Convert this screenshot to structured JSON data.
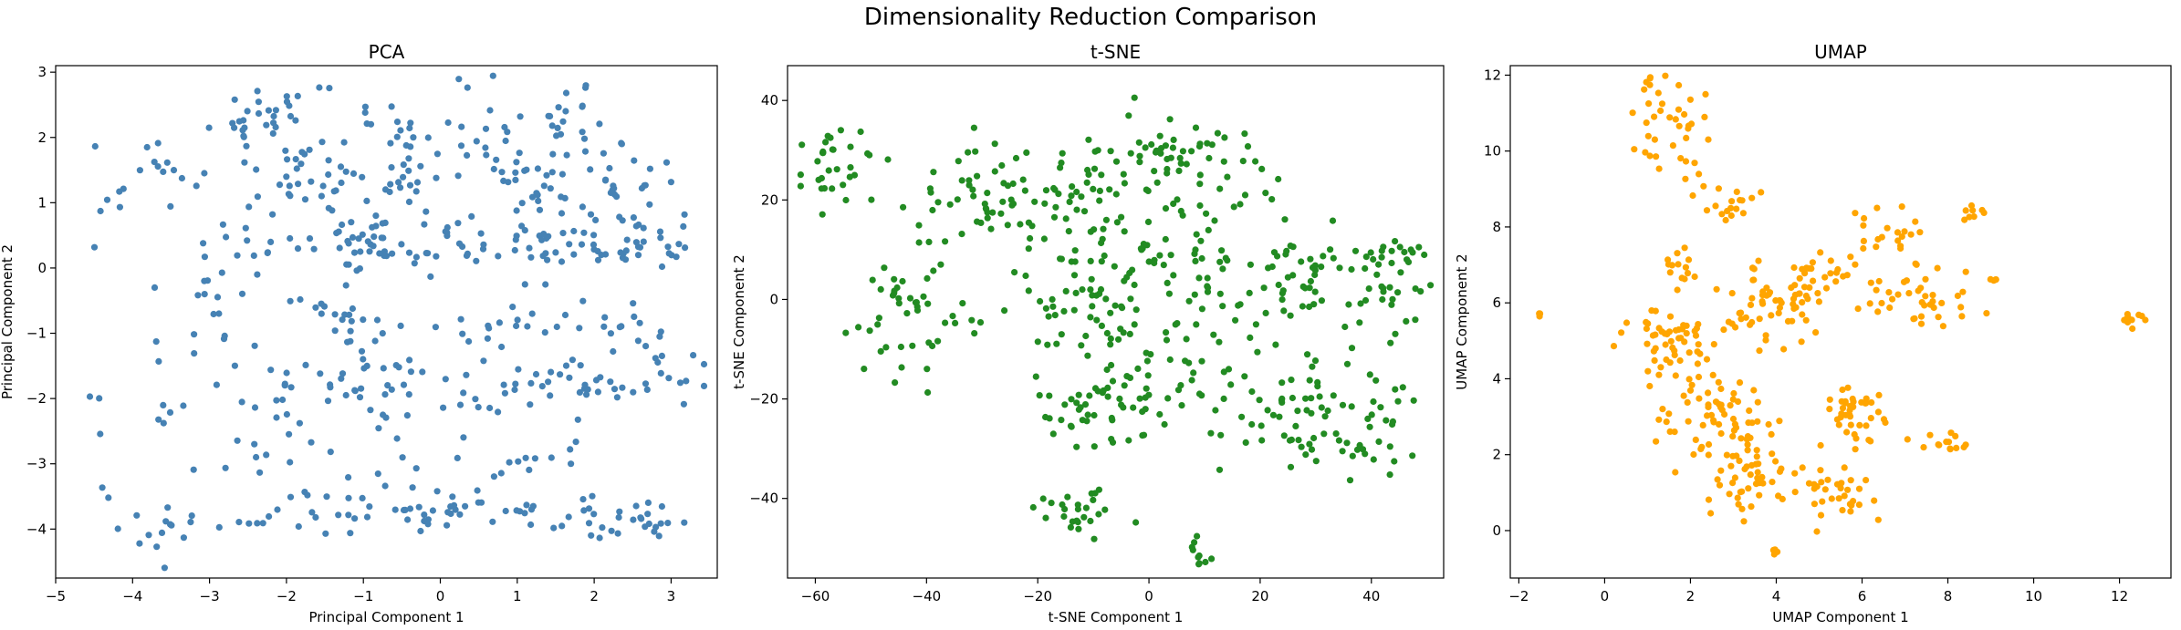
{
  "figure": {
    "title": "Dimensionality Reduction Comparison"
  },
  "chart_data": [
    {
      "type": "scatter",
      "title": "PCA",
      "xlabel": "Principal Component 1",
      "ylabel": "Principal Component 2",
      "xlim": [
        -5.0,
        3.6
      ],
      "ylim": [
        -4.75,
        3.1
      ],
      "xticks": [
        "−5",
        "−4",
        "−3",
        "−2",
        "−1",
        "0",
        "1",
        "2",
        "3"
      ],
      "yticks": [
        "−4",
        "−3",
        "−2",
        "−1",
        "0",
        "1",
        "2",
        "3"
      ],
      "grid": false,
      "color": "#4682b4",
      "points_seed": 11,
      "clusters": [
        {
          "cx": -2.3,
          "cy": 2.35,
          "sx": 0.28,
          "sy": 0.28,
          "n": 28
        },
        {
          "cx": -0.8,
          "cy": 2.2,
          "sx": 0.45,
          "sy": 0.35,
          "n": 22
        },
        {
          "cx": 0.6,
          "cy": 2.2,
          "sx": 0.4,
          "sy": 0.35,
          "n": 16
        },
        {
          "cx": 1.7,
          "cy": 2.2,
          "sx": 0.3,
          "sy": 0.3,
          "n": 22
        },
        {
          "cx": -3.5,
          "cy": 1.4,
          "sx": 0.3,
          "sy": 0.35,
          "n": 12
        },
        {
          "cx": -4.2,
          "cy": 1.1,
          "sx": 0.2,
          "sy": 0.5,
          "n": 6
        },
        {
          "cx": -1.7,
          "cy": 1.35,
          "sx": 0.3,
          "sy": 0.3,
          "n": 30
        },
        {
          "cx": -0.5,
          "cy": 1.3,
          "sx": 0.35,
          "sy": 0.3,
          "n": 20
        },
        {
          "cx": 1.2,
          "cy": 1.3,
          "sx": 0.35,
          "sy": 0.25,
          "n": 26
        },
        {
          "cx": 2.4,
          "cy": 1.35,
          "sx": 0.35,
          "sy": 0.25,
          "n": 22
        },
        {
          "cx": -2.5,
          "cy": 0.3,
          "sx": 0.45,
          "sy": 0.35,
          "n": 22
        },
        {
          "cx": -1.1,
          "cy": 0.4,
          "sx": 0.3,
          "sy": 0.2,
          "n": 32
        },
        {
          "cx": 0.2,
          "cy": 0.35,
          "sx": 0.45,
          "sy": 0.2,
          "n": 30
        },
        {
          "cx": 1.6,
          "cy": 0.35,
          "sx": 0.35,
          "sy": 0.2,
          "n": 28
        },
        {
          "cx": 2.8,
          "cy": 0.4,
          "sx": 0.3,
          "sy": 0.25,
          "n": 26
        },
        {
          "cx": -2.9,
          "cy": -0.85,
          "sx": 0.35,
          "sy": 0.35,
          "n": 12
        },
        {
          "cx": -1.3,
          "cy": -0.9,
          "sx": 0.45,
          "sy": 0.35,
          "n": 26
        },
        {
          "cx": 0.6,
          "cy": -0.8,
          "sx": 0.5,
          "sy": 0.3,
          "n": 16
        },
        {
          "cx": 2.3,
          "cy": -0.9,
          "sx": 0.45,
          "sy": 0.35,
          "n": 20
        },
        {
          "cx": -2.2,
          "cy": -1.8,
          "sx": 0.45,
          "sy": 0.3,
          "n": 14
        },
        {
          "cx": -1.0,
          "cy": -1.8,
          "sx": 0.4,
          "sy": 0.3,
          "n": 22
        },
        {
          "cx": 0.3,
          "cy": -1.8,
          "sx": 0.45,
          "sy": 0.25,
          "n": 18
        },
        {
          "cx": 1.7,
          "cy": -1.75,
          "sx": 0.4,
          "sy": 0.25,
          "n": 22
        },
        {
          "cx": 2.8,
          "cy": -1.75,
          "sx": 0.3,
          "sy": 0.25,
          "n": 16
        },
        {
          "cx": -3.6,
          "cy": -2.0,
          "sx": 0.15,
          "sy": 0.4,
          "n": 6
        },
        {
          "cx": -2.3,
          "cy": -2.8,
          "sx": 0.5,
          "sy": 0.3,
          "n": 12
        },
        {
          "cx": -0.7,
          "cy": -2.9,
          "sx": 0.5,
          "sy": 0.3,
          "n": 10
        },
        {
          "cx": 1.2,
          "cy": -2.9,
          "sx": 0.5,
          "sy": 0.3,
          "n": 12
        },
        {
          "cx": -3.8,
          "cy": -4.1,
          "sx": 0.3,
          "sy": 0.25,
          "n": 14
        },
        {
          "cx": -1.6,
          "cy": -3.8,
          "sx": 0.45,
          "sy": 0.15,
          "n": 20
        },
        {
          "cx": 0.1,
          "cy": -3.7,
          "sx": 0.5,
          "sy": 0.15,
          "n": 28
        },
        {
          "cx": 1.7,
          "cy": -3.8,
          "sx": 0.5,
          "sy": 0.15,
          "n": 22
        },
        {
          "cx": 2.6,
          "cy": -3.85,
          "sx": 0.35,
          "sy": 0.15,
          "n": 16
        },
        {
          "cx": -4.45,
          "cy": -2.4,
          "sx": 0.08,
          "sy": 1.2,
          "n": 6
        }
      ]
    },
    {
      "type": "scatter",
      "title": "t-SNE",
      "xlabel": "t-SNE Component 1",
      "ylabel": "t-SNE Component 2",
      "xlim": [
        -65,
        53
      ],
      "ylim": [
        -56,
        47
      ],
      "xticks": [
        "−60",
        "−40",
        "−20",
        "0",
        "20",
        "40"
      ],
      "yticks": [
        "−40",
        "−20",
        "0",
        "20",
        "40"
      ],
      "grid": false,
      "color": "#228b22",
      "points_seed": 23,
      "clusters": [
        {
          "cx": -55,
          "cy": 26,
          "sx": 3.5,
          "sy": 3.5,
          "n": 32
        },
        {
          "cx": -33,
          "cy": 22,
          "sx": 5,
          "sy": 5,
          "n": 38
        },
        {
          "cx": -44,
          "cy": -3,
          "sx": 5,
          "sy": 7,
          "n": 48
        },
        {
          "cx": -14,
          "cy": 18,
          "sx": 7,
          "sy": 8,
          "n": 60
        },
        {
          "cx": 2,
          "cy": 28,
          "sx": 7,
          "sy": 6,
          "n": 52
        },
        {
          "cx": -10,
          "cy": 0,
          "sx": 8,
          "sy": 8,
          "n": 75
        },
        {
          "cx": 10,
          "cy": 5,
          "sx": 6,
          "sy": 9,
          "n": 50
        },
        {
          "cx": 26,
          "cy": 4,
          "sx": 4,
          "sy": 5,
          "n": 38
        },
        {
          "cx": 41,
          "cy": 5,
          "sx": 5,
          "sy": 6,
          "n": 45
        },
        {
          "cx": 20,
          "cy": 25,
          "sx": 3,
          "sy": 4,
          "n": 8
        },
        {
          "cx": -8,
          "cy": -22,
          "sx": 8,
          "sy": 5,
          "n": 52
        },
        {
          "cx": 10,
          "cy": -20,
          "sx": 6,
          "sy": 6,
          "n": 32
        },
        {
          "cx": 27,
          "cy": -25,
          "sx": 4,
          "sy": 6,
          "n": 38
        },
        {
          "cx": 40,
          "cy": -24,
          "sx": 5,
          "sy": 7,
          "n": 35
        },
        {
          "cx": -14,
          "cy": -43,
          "sx": 4,
          "sy": 2.5,
          "n": 26
        },
        {
          "cx": 9,
          "cy": -51,
          "sx": 1,
          "sy": 1.5,
          "n": 10
        }
      ]
    },
    {
      "type": "scatter",
      "title": "UMAP",
      "xlabel": "UMAP Component 1",
      "ylabel": "UMAP Component 2",
      "xlim": [
        -2.2,
        13.2
      ],
      "ylim": [
        -1.25,
        12.25
      ],
      "xticks": [
        "−2",
        "0",
        "2",
        "4",
        "6",
        "8",
        "10",
        "12"
      ],
      "yticks": [
        "0",
        "2",
        "4",
        "6",
        "8",
        "10",
        "12"
      ],
      "grid": false,
      "color": "#ffa500",
      "points_seed": 37,
      "clusters": [
        {
          "cx": 1.5,
          "cy": 10.6,
          "sx": 0.4,
          "sy": 0.7,
          "n": 40
        },
        {
          "cx": 3.0,
          "cy": 8.7,
          "sx": 0.4,
          "sy": 0.3,
          "n": 18
        },
        {
          "cx": 1.8,
          "cy": 7.0,
          "sx": 0.2,
          "sy": 0.3,
          "n": 14
        },
        {
          "cx": 1.5,
          "cy": 5.0,
          "sx": 0.6,
          "sy": 0.5,
          "n": 55
        },
        {
          "cx": 3.8,
          "cy": 6.0,
          "sx": 0.5,
          "sy": 0.6,
          "n": 60
        },
        {
          "cx": 5.0,
          "cy": 6.8,
          "sx": 0.5,
          "sy": 0.3,
          "n": 22
        },
        {
          "cx": 6.6,
          "cy": 8.0,
          "sx": 0.4,
          "sy": 0.4,
          "n": 20
        },
        {
          "cx": 8.5,
          "cy": 8.35,
          "sx": 0.15,
          "sy": 0.1,
          "n": 8
        },
        {
          "cx": 7.5,
          "cy": 6.3,
          "sx": 0.7,
          "sy": 0.4,
          "n": 42
        },
        {
          "cx": 9.1,
          "cy": 6.6,
          "sx": 0.05,
          "sy": 0.05,
          "n": 3
        },
        {
          "cx": 12.3,
          "cy": 5.6,
          "sx": 0.2,
          "sy": 0.1,
          "n": 10
        },
        {
          "cx": -1.5,
          "cy": 5.7,
          "sx": 0.03,
          "sy": 0.03,
          "n": 3
        },
        {
          "cx": 2.5,
          "cy": 3.0,
          "sx": 0.6,
          "sy": 0.5,
          "n": 60
        },
        {
          "cx": 3.5,
          "cy": 1.5,
          "sx": 0.5,
          "sy": 0.6,
          "n": 50
        },
        {
          "cx": 5.8,
          "cy": 3.2,
          "sx": 0.4,
          "sy": 0.5,
          "n": 40
        },
        {
          "cx": 5.5,
          "cy": 1.0,
          "sx": 0.5,
          "sy": 0.35,
          "n": 32
        },
        {
          "cx": 7.9,
          "cy": 2.3,
          "sx": 0.35,
          "sy": 0.15,
          "n": 14
        },
        {
          "cx": 4.0,
          "cy": -0.55,
          "sx": 0.05,
          "sy": 0.05,
          "n": 4
        }
      ]
    }
  ]
}
